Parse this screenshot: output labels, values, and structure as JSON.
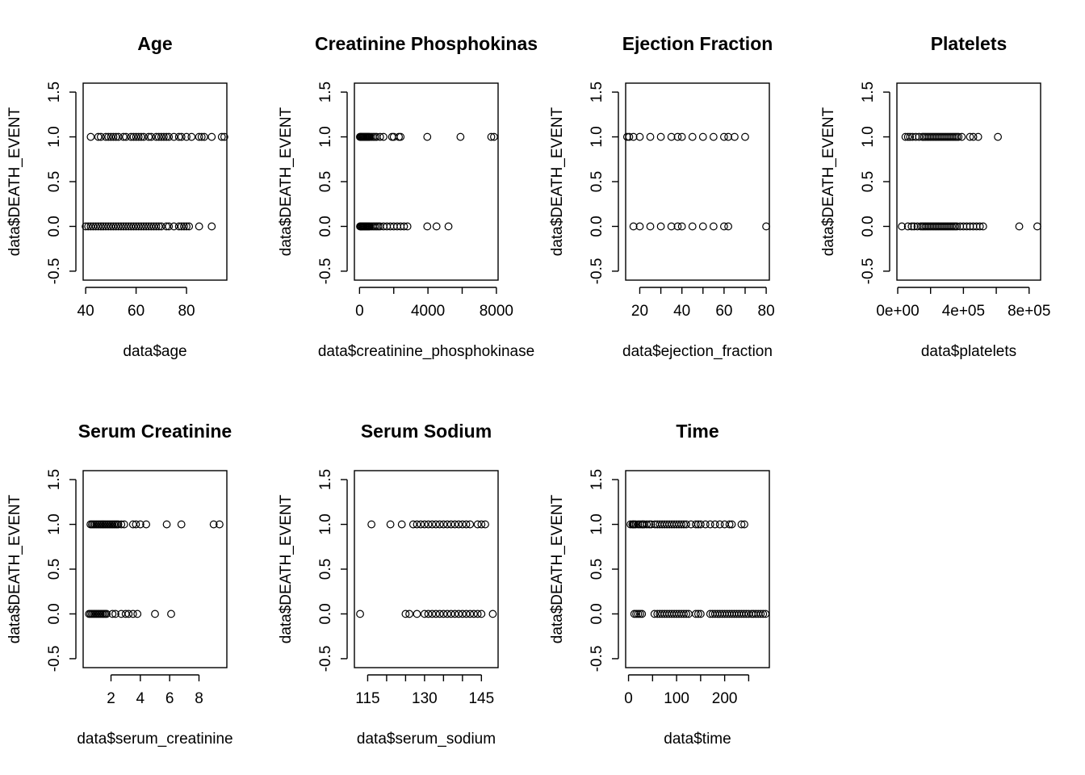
{
  "chart_data": [
    {
      "type": "scatter",
      "title": "Age",
      "xlabel": "data$age",
      "ylabel": "data$DEATH_EVENT",
      "xlim": [
        39.0,
        96.0
      ],
      "ylim": [
        -0.6,
        1.6
      ],
      "x_ticks": [
        40,
        60,
        80
      ],
      "x_tick_labels": [
        "40",
        "60",
        "80"
      ],
      "y_ticks": [
        -0.5,
        0.0,
        0.5,
        1.0,
        1.5
      ],
      "y_tick_labels": [
        "-0.5",
        "0.0",
        "0.5",
        "1.0",
        "1.5"
      ],
      "series": [
        {
          "x": [
            42,
            45,
            46,
            48,
            49,
            50,
            51,
            52,
            53,
            55,
            56,
            58,
            59,
            60,
            61,
            62,
            63,
            65,
            66,
            68,
            69,
            70,
            71,
            72,
            73,
            75,
            77,
            78,
            80,
            82,
            85,
            86,
            87,
            90,
            94,
            95
          ],
          "y": [
            1,
            1,
            1,
            1,
            1,
            1,
            1,
            1,
            1,
            1,
            1,
            1,
            1,
            1,
            1,
            1,
            1,
            1,
            1,
            1,
            1,
            1,
            1,
            1,
            1,
            1,
            1,
            1,
            1,
            1,
            1,
            1,
            1,
            1,
            1,
            1
          ]
        },
        {
          "x": [
            40,
            41,
            42,
            43,
            44,
            45,
            46,
            47,
            48,
            49,
            50,
            51,
            52,
            53,
            54,
            55,
            56,
            57,
            58,
            59,
            60,
            61,
            62,
            63,
            64,
            65,
            66,
            67,
            68,
            69,
            70,
            72,
            73,
            75,
            77,
            78,
            79,
            80,
            81,
            85,
            90
          ],
          "y": [
            0,
            0,
            0,
            0,
            0,
            0,
            0,
            0,
            0,
            0,
            0,
            0,
            0,
            0,
            0,
            0,
            0,
            0,
            0,
            0,
            0,
            0,
            0,
            0,
            0,
            0,
            0,
            0,
            0,
            0,
            0,
            0,
            0,
            0,
            0,
            0,
            0,
            0,
            0,
            0,
            0
          ]
        }
      ]
    },
    {
      "type": "scatter",
      "title": "Creatinine Phosphokinas",
      "xlabel": "data$creatinine_phosphokinase",
      "ylabel": "data$DEATH_EVENT",
      "xlim": [
        -300,
        8100
      ],
      "ylim": [
        -0.6,
        1.6
      ],
      "x_ticks": [
        0,
        2000,
        4000,
        6000,
        8000
      ],
      "x_tick_labels": [
        "0",
        "",
        "4000",
        "",
        "8000"
      ],
      "y_ticks": [
        -0.5,
        0.0,
        0.5,
        1.0,
        1.5
      ],
      "y_tick_labels": [
        "-0.5",
        "0.0",
        "0.5",
        "1.0",
        "1.5"
      ],
      "series": [
        {
          "x": [
            23,
            60,
            100,
            150,
            200,
            250,
            300,
            350,
            400,
            450,
            500,
            550,
            600,
            700,
            800,
            900,
            1000,
            1200,
            1400,
            1900,
            2000,
            2300,
            2400,
            3960,
            5900,
            7700,
            7860
          ],
          "y": [
            1,
            1,
            1,
            1,
            1,
            1,
            1,
            1,
            1,
            1,
            1,
            1,
            1,
            1,
            1,
            1,
            1,
            1,
            1,
            1,
            1,
            1,
            1,
            1,
            1,
            1,
            1
          ]
        },
        {
          "x": [
            30,
            70,
            100,
            150,
            200,
            250,
            300,
            350,
            400,
            450,
            500,
            550,
            600,
            700,
            800,
            900,
            1000,
            1100,
            1200,
            1400,
            1600,
            1800,
            2000,
            2200,
            2400,
            2600,
            2800,
            3960,
            4500,
            5200
          ],
          "y": [
            0,
            0,
            0,
            0,
            0,
            0,
            0,
            0,
            0,
            0,
            0,
            0,
            0,
            0,
            0,
            0,
            0,
            0,
            0,
            0,
            0,
            0,
            0,
            0,
            0,
            0,
            0,
            0,
            0,
            0
          ]
        }
      ]
    },
    {
      "type": "scatter",
      "title": "Ejection Fraction",
      "xlabel": "data$ejection_fraction",
      "ylabel": "data$DEATH_EVENT",
      "xlim": [
        13.3,
        81.5
      ],
      "ylim": [
        -0.6,
        1.6
      ],
      "x_ticks": [
        20,
        30,
        40,
        50,
        60,
        70,
        80
      ],
      "x_tick_labels": [
        "20",
        "",
        "40",
        "",
        "60",
        "",
        "80"
      ],
      "y_ticks": [
        -0.5,
        0.0,
        0.5,
        1.0,
        1.5
      ],
      "y_tick_labels": [
        "-0.5",
        "0.0",
        "0.5",
        "1.0",
        "1.5"
      ],
      "series": [
        {
          "x": [
            14,
            15,
            17,
            20,
            25,
            30,
            35,
            38,
            40,
            45,
            50,
            55,
            60,
            62,
            65,
            70
          ],
          "y": [
            1,
            1,
            1,
            1,
            1,
            1,
            1,
            1,
            1,
            1,
            1,
            1,
            1,
            1,
            1,
            1
          ]
        },
        {
          "x": [
            17,
            20,
            25,
            30,
            35,
            38,
            40,
            45,
            50,
            55,
            60,
            62,
            80
          ],
          "y": [
            0,
            0,
            0,
            0,
            0,
            0,
            0,
            0,
            0,
            0,
            0,
            0,
            0
          ]
        }
      ]
    },
    {
      "type": "scatter",
      "title": "Platelets",
      "xlabel": "data$platelets",
      "ylabel": "data$DEATH_EVENT",
      "xlim": [
        -5000,
        870000
      ],
      "ylim": [
        -0.6,
        1.6
      ],
      "x_ticks": [
        0,
        200000,
        400000,
        600000,
        800000
      ],
      "x_tick_labels": [
        "0e+00",
        "",
        "4e+05",
        "",
        "8e+05"
      ],
      "y_ticks": [
        -0.5,
        0.0,
        0.5,
        1.0,
        1.5
      ],
      "y_tick_labels": [
        "-0.5",
        "0.0",
        "0.5",
        "1.0",
        "1.5"
      ],
      "series": [
        {
          "x": [
            47000,
            62000,
            75000,
            90000,
            110000,
            130000,
            150000,
            160000,
            170000,
            180000,
            190000,
            200000,
            210000,
            220000,
            230000,
            240000,
            250000,
            260000,
            270000,
            280000,
            290000,
            300000,
            310000,
            320000,
            330000,
            340000,
            350000,
            360000,
            370000,
            390000,
            440000,
            460000,
            490000,
            610000
          ],
          "y": [
            1,
            1,
            1,
            1,
            1,
            1,
            1,
            1,
            1,
            1,
            1,
            1,
            1,
            1,
            1,
            1,
            1,
            1,
            1,
            1,
            1,
            1,
            1,
            1,
            1,
            1,
            1,
            1,
            1,
            1,
            1,
            1,
            1,
            1
          ]
        },
        {
          "x": [
            25100,
            62000,
            85000,
            100000,
            120000,
            140000,
            150000,
            160000,
            170000,
            180000,
            190000,
            200000,
            210000,
            220000,
            230000,
            240000,
            250000,
            260000,
            270000,
            280000,
            290000,
            300000,
            310000,
            320000,
            330000,
            340000,
            350000,
            360000,
            380000,
            400000,
            420000,
            440000,
            460000,
            480000,
            500000,
            520000,
            740000,
            850000
          ],
          "y": [
            0,
            0,
            0,
            0,
            0,
            0,
            0,
            0,
            0,
            0,
            0,
            0,
            0,
            0,
            0,
            0,
            0,
            0,
            0,
            0,
            0,
            0,
            0,
            0,
            0,
            0,
            0,
            0,
            0,
            0,
            0,
            0,
            0,
            0,
            0,
            0,
            0,
            0
          ]
        }
      ]
    },
    {
      "type": "scatter",
      "title": "Serum Creatinine",
      "xlabel": "data$serum_creatinine",
      "ylabel": "data$DEATH_EVENT",
      "xlim": [
        0.1,
        9.9
      ],
      "ylim": [
        -0.6,
        1.6
      ],
      "x_ticks": [
        2,
        4,
        6,
        8
      ],
      "x_tick_labels": [
        "2",
        "4",
        "6",
        "8"
      ],
      "y_ticks": [
        -0.5,
        0.0,
        0.5,
        1.0,
        1.5
      ],
      "y_tick_labels": [
        "-0.5",
        "0.0",
        "0.5",
        "1.0",
        "1.5"
      ],
      "series": [
        {
          "x": [
            0.6,
            0.7,
            0.8,
            0.9,
            1.0,
            1.1,
            1.2,
            1.3,
            1.4,
            1.5,
            1.6,
            1.7,
            1.8,
            1.9,
            2.0,
            2.1,
            2.2,
            2.3,
            2.4,
            2.5,
            2.7,
            2.9,
            3.5,
            3.7,
            4.0,
            4.4,
            5.8,
            6.8,
            9.0,
            9.4
          ],
          "y": [
            1,
            1,
            1,
            1,
            1,
            1,
            1,
            1,
            1,
            1,
            1,
            1,
            1,
            1,
            1,
            1,
            1,
            1,
            1,
            1,
            1,
            1,
            1,
            1,
            1,
            1,
            1,
            1,
            1,
            1
          ]
        },
        {
          "x": [
            0.5,
            0.6,
            0.7,
            0.8,
            0.9,
            1.0,
            1.1,
            1.2,
            1.3,
            1.4,
            1.5,
            1.6,
            1.7,
            2.1,
            2.3,
            2.7,
            3.0,
            3.2,
            3.5,
            3.8,
            5.0,
            6.1
          ],
          "y": [
            0,
            0,
            0,
            0,
            0,
            0,
            0,
            0,
            0,
            0,
            0,
            0,
            0,
            0,
            0,
            0,
            0,
            0,
            0,
            0,
            0,
            0
          ]
        }
      ]
    },
    {
      "type": "scatter",
      "title": "Serum Sodium",
      "xlabel": "data$serum_sodium",
      "ylabel": "data$DEATH_EVENT",
      "xlim": [
        111.5,
        149.4
      ],
      "ylim": [
        -0.6,
        1.6
      ],
      "x_ticks": [
        115,
        120,
        125,
        130,
        135,
        140,
        145
      ],
      "x_tick_labels": [
        "115",
        "",
        "",
        "130",
        "",
        "",
        "145"
      ],
      "y_ticks": [
        -0.5,
        0.0,
        0.5,
        1.0,
        1.5
      ],
      "y_tick_labels": [
        "-0.5",
        "0.0",
        "0.5",
        "1.0",
        "1.5"
      ],
      "series": [
        {
          "x": [
            116,
            121,
            124,
            127,
            128,
            129,
            130,
            131,
            132,
            133,
            134,
            135,
            136,
            137,
            138,
            139,
            140,
            141,
            142,
            144,
            145,
            146
          ],
          "y": [
            1,
            1,
            1,
            1,
            1,
            1,
            1,
            1,
            1,
            1,
            1,
            1,
            1,
            1,
            1,
            1,
            1,
            1,
            1,
            1,
            1,
            1
          ]
        },
        {
          "x": [
            113,
            125,
            126,
            128,
            130,
            131,
            132,
            133,
            134,
            135,
            136,
            137,
            138,
            139,
            140,
            141,
            142,
            143,
            144,
            145,
            148
          ],
          "y": [
            0,
            0,
            0,
            0,
            0,
            0,
            0,
            0,
            0,
            0,
            0,
            0,
            0,
            0,
            0,
            0,
            0,
            0,
            0,
            0,
            0
          ]
        }
      ]
    },
    {
      "type": "scatter",
      "title": "Time",
      "xlabel": "data$time",
      "ylabel": "data$DEATH_EVENT",
      "xlim": [
        -6,
        293
      ],
      "ylim": [
        -0.6,
        1.6
      ],
      "x_ticks": [
        0,
        50,
        100,
        150,
        200,
        250
      ],
      "x_tick_labels": [
        "0",
        "",
        "100",
        "",
        "200",
        ""
      ],
      "y_ticks": [
        -0.5,
        0.0,
        0.5,
        1.0,
        1.5
      ],
      "y_tick_labels": [
        "-0.5",
        "0.0",
        "0.5",
        "1.0",
        "1.5"
      ],
      "series": [
        {
          "x": [
            4,
            8,
            10,
            12,
            15,
            20,
            24,
            28,
            30,
            33,
            38,
            43,
            47,
            55,
            60,
            65,
            70,
            75,
            80,
            85,
            90,
            95,
            100,
            105,
            110,
            115,
            120,
            130,
            140,
            145,
            150,
            160,
            170,
            180,
            190,
            200,
            210,
            215,
            235,
            241
          ],
          "y": [
            1,
            1,
            1,
            1,
            1,
            1,
            1,
            1,
            1,
            1,
            1,
            1,
            1,
            1,
            1,
            1,
            1,
            1,
            1,
            1,
            1,
            1,
            1,
            1,
            1,
            1,
            1,
            1,
            1,
            1,
            1,
            1,
            1,
            1,
            1,
            1,
            1,
            1,
            1,
            1
          ]
        },
        {
          "x": [
            12,
            16,
            20,
            24,
            28,
            54,
            60,
            65,
            70,
            75,
            80,
            85,
            90,
            95,
            100,
            105,
            110,
            115,
            120,
            125,
            140,
            145,
            150,
            170,
            175,
            180,
            185,
            190,
            195,
            200,
            205,
            210,
            215,
            220,
            225,
            230,
            235,
            240,
            245,
            250,
            256,
            260,
            265,
            270,
            275,
            280,
            285
          ],
          "y": [
            0,
            0,
            0,
            0,
            0,
            0,
            0,
            0,
            0,
            0,
            0,
            0,
            0,
            0,
            0,
            0,
            0,
            0,
            0,
            0,
            0,
            0,
            0,
            0,
            0,
            0,
            0,
            0,
            0,
            0,
            0,
            0,
            0,
            0,
            0,
            0,
            0,
            0,
            0,
            0,
            0,
            0,
            0,
            0,
            0,
            0,
            0
          ]
        }
      ]
    }
  ]
}
